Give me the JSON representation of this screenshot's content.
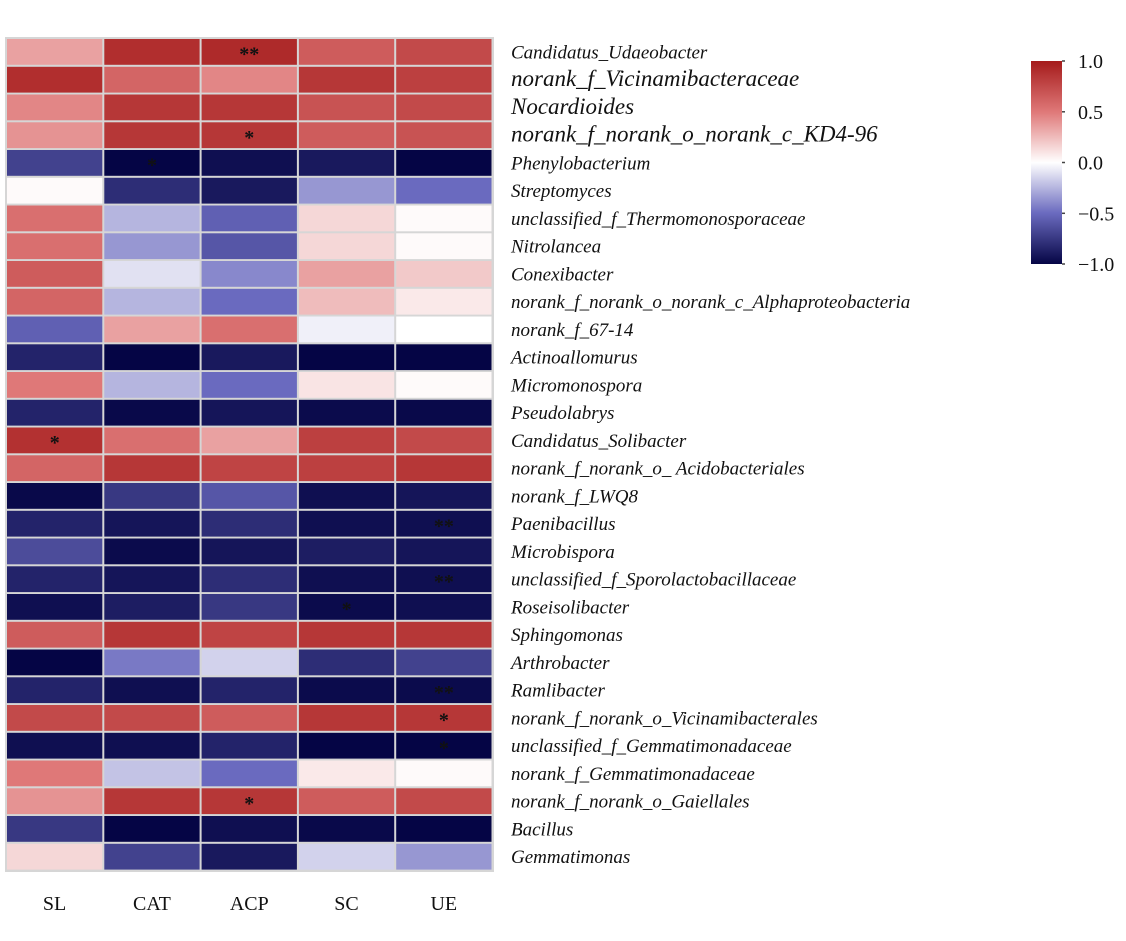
{
  "chart_data": {
    "type": "heatmap",
    "title": "",
    "xlabel": "",
    "ylabel": "",
    "columns": [
      "SL",
      "CAT",
      "ACP",
      "SC",
      "UE"
    ],
    "rows": [
      "Candidatus_Udaeobacter",
      "norank_f_Vicinamibacteraceae",
      "Nocardioides",
      "norank_f_norank_o_norank_c_KD4-96",
      "Phenylobacterium",
      "Streptomyces",
      "unclassified_f_Thermomonosporaceae",
      "Nitrolancea",
      "Conexibacter",
      "norank_f_norank_o_norank_c_Alphaproteobacteria",
      "norank_f_67-14",
      "Actinoallomurus",
      "Micromonospora",
      "Pseudolabrys",
      "Candidatus_Solibacter",
      "norank_f_norank_o_ Acidobacteriales",
      "norank_f_LWQ8",
      "Paenibacillus",
      "Microbispora",
      "unclassified_f_Sporolactobacillaceae",
      "Roseisolibacter",
      "Sphingomonas",
      "Arthrobacter",
      "Ramlibacter",
      "norank_f_norank_o_Vicinamibacterales",
      "unclassified_f_Gemmatimonadaceae",
      "norank_f_Gemmatimonadaceae",
      "norank_f_norank_o_Gaiellales",
      "Bacillus",
      "Gemmatimonas"
    ],
    "values": [
      [
        0.35,
        0.9,
        0.92,
        0.65,
        0.75
      ],
      [
        0.9,
        0.6,
        0.45,
        0.85,
        0.8
      ],
      [
        0.45,
        0.85,
        0.85,
        0.7,
        0.75
      ],
      [
        0.4,
        0.85,
        0.85,
        0.65,
        0.7
      ],
      [
        -0.7,
        -1.0,
        -0.95,
        -0.9,
        -1.0
      ],
      [
        0.02,
        -0.8,
        -0.9,
        -0.35,
        -0.5
      ],
      [
        0.55,
        -0.25,
        -0.55,
        0.15,
        0.02
      ],
      [
        0.55,
        -0.35,
        -0.6,
        0.15,
        0.02
      ],
      [
        0.65,
        -0.1,
        -0.4,
        0.35,
        0.2
      ],
      [
        0.6,
        -0.25,
        -0.5,
        0.25,
        0.08
      ],
      [
        -0.55,
        0.35,
        0.55,
        -0.05,
        0.0
      ],
      [
        -0.85,
        -1.0,
        -0.9,
        -1.0,
        -1.0
      ],
      [
        0.5,
        -0.25,
        -0.5,
        0.1,
        0.02
      ],
      [
        -0.85,
        -0.98,
        -0.92,
        -0.97,
        -0.98
      ],
      [
        0.88,
        0.55,
        0.35,
        0.8,
        0.75
      ],
      [
        0.6,
        0.85,
        0.78,
        0.8,
        0.85
      ],
      [
        -0.98,
        -0.75,
        -0.6,
        -0.95,
        -0.92
      ],
      [
        -0.85,
        -0.92,
        -0.8,
        -0.95,
        -0.95
      ],
      [
        -0.65,
        -0.97,
        -0.92,
        -0.88,
        -0.92
      ],
      [
        -0.85,
        -0.92,
        -0.8,
        -0.95,
        -0.95
      ],
      [
        -0.95,
        -0.88,
        -0.75,
        -0.97,
        -0.95
      ],
      [
        0.65,
        0.85,
        0.78,
        0.85,
        0.85
      ],
      [
        -1.0,
        -0.45,
        -0.15,
        -0.8,
        -0.7
      ],
      [
        -0.85,
        -0.95,
        -0.85,
        -0.97,
        -0.97
      ],
      [
        0.75,
        0.75,
        0.65,
        0.85,
        0.85
      ],
      [
        -0.95,
        -0.95,
        -0.85,
        -1.0,
        -1.0
      ],
      [
        0.5,
        -0.2,
        -0.5,
        0.08,
        0.02
      ],
      [
        0.4,
        0.85,
        0.85,
        0.65,
        0.75
      ],
      [
        -0.75,
        -1.0,
        -0.95,
        -0.98,
        -1.0
      ],
      [
        0.15,
        -0.7,
        -0.9,
        -0.15,
        -0.35
      ]
    ],
    "significance": [
      [
        "",
        "",
        "**",
        "",
        ""
      ],
      [
        "",
        "",
        "",
        "",
        ""
      ],
      [
        "",
        "",
        "",
        "",
        ""
      ],
      [
        "",
        "",
        "*",
        "",
        ""
      ],
      [
        "",
        "*",
        "",
        "",
        ""
      ],
      [
        "",
        "",
        "",
        "",
        ""
      ],
      [
        "",
        "",
        "",
        "",
        ""
      ],
      [
        "",
        "",
        "",
        "",
        ""
      ],
      [
        "",
        "",
        "",
        "",
        ""
      ],
      [
        "",
        "",
        "",
        "",
        ""
      ],
      [
        "",
        "",
        "",
        "",
        ""
      ],
      [
        "",
        "",
        "",
        "",
        ""
      ],
      [
        "",
        "",
        "",
        "",
        ""
      ],
      [
        "",
        "",
        "",
        "",
        ""
      ],
      [
        "*",
        "",
        "",
        "",
        ""
      ],
      [
        "",
        "",
        "",
        "",
        ""
      ],
      [
        "",
        "",
        "",
        "",
        ""
      ],
      [
        "",
        "",
        "",
        "",
        "**"
      ],
      [
        "",
        "",
        "",
        "",
        ""
      ],
      [
        "",
        "",
        "",
        "",
        "**"
      ],
      [
        "",
        "",
        "",
        "*",
        ""
      ],
      [
        "",
        "",
        "",
        "",
        ""
      ],
      [
        "",
        "",
        "",
        "",
        ""
      ],
      [
        "",
        "",
        "",
        "",
        "**"
      ],
      [
        "",
        "",
        "",
        "",
        "*"
      ],
      [
        "",
        "",
        "",
        "",
        "*"
      ],
      [
        "",
        "",
        "",
        "",
        ""
      ],
      [
        "",
        "",
        "*",
        "",
        ""
      ],
      [
        "",
        "",
        "",
        "",
        ""
      ],
      [
        "",
        "",
        "",
        "",
        ""
      ]
    ],
    "colorbar": {
      "range": [
        -1.0,
        1.0
      ],
      "ticks": [
        "1.0",
        "0.5",
        "0.0",
        "−0.5",
        "−1.0"
      ],
      "tick_values": [
        1.0,
        0.5,
        0.0,
        -0.5,
        -1.0
      ],
      "colors": {
        "low": "#050545",
        "mid": "#ffffff",
        "high": "#a51b1b"
      },
      "placement": "right"
    }
  }
}
